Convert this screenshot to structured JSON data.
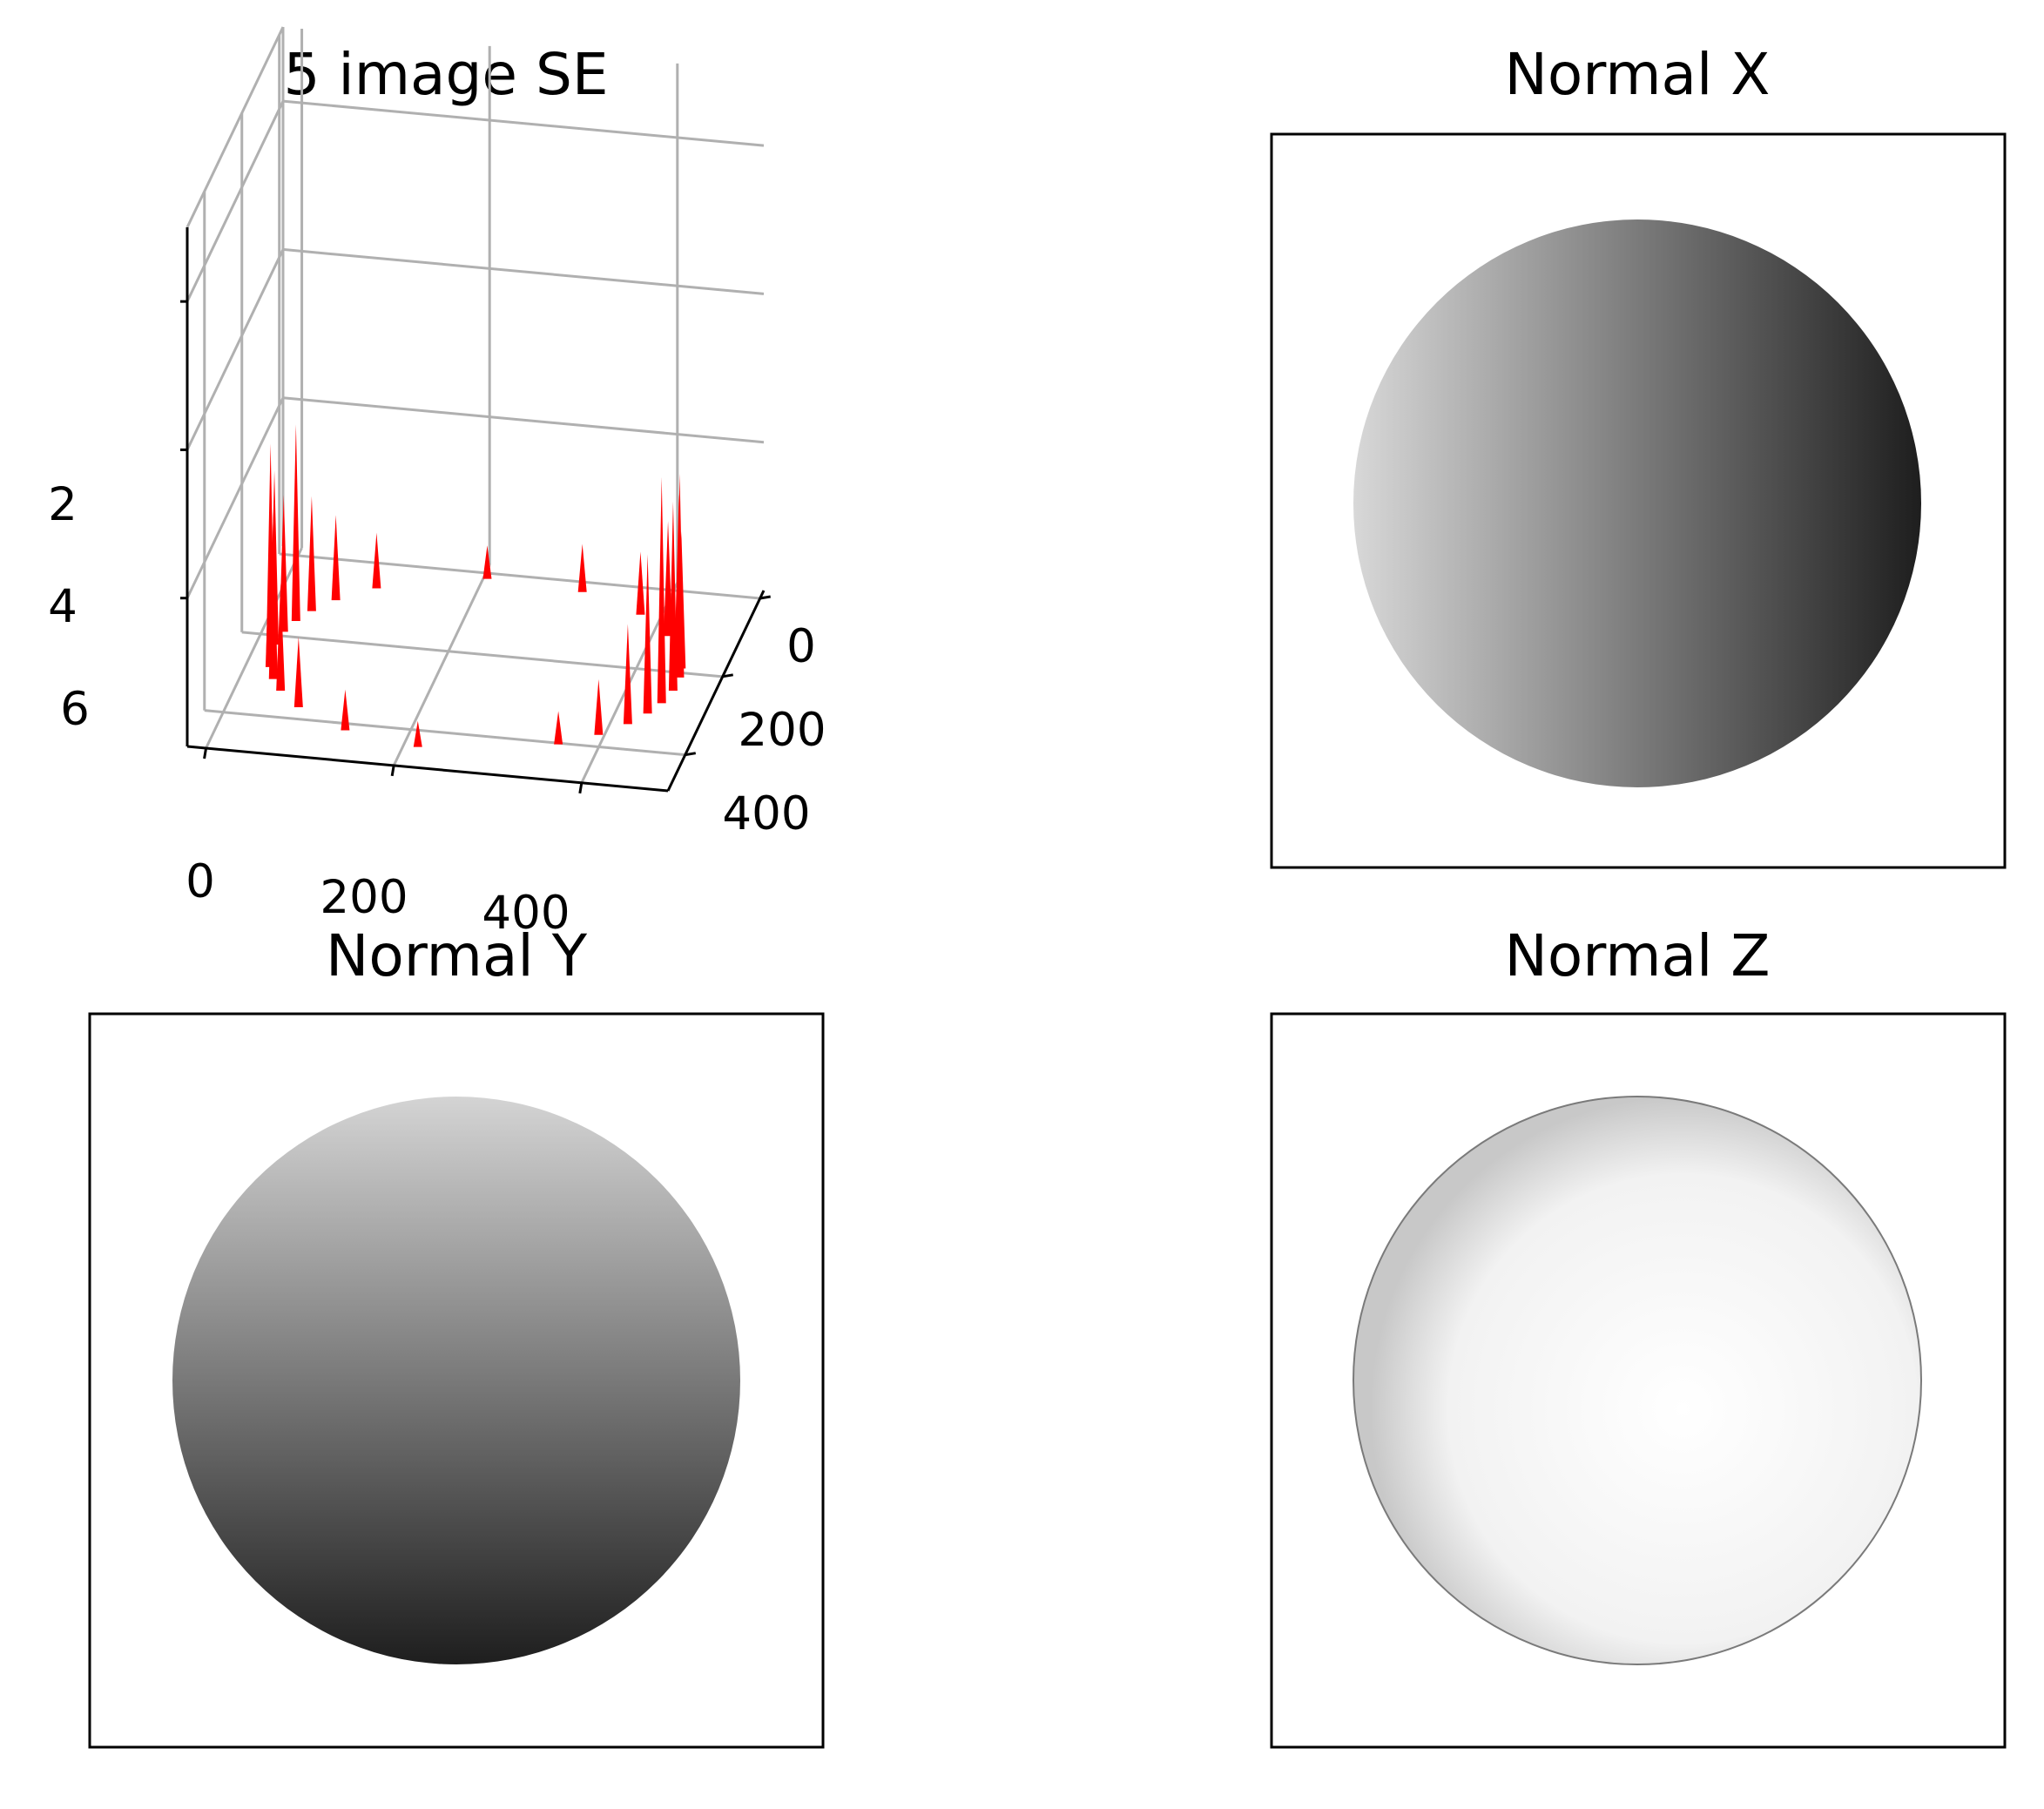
{
  "chart_data": [
    {
      "type": "surface3d",
      "title": "5 image SE",
      "x_ticks": [
        "0",
        "200",
        "400"
      ],
      "y_ticks": [
        "0",
        "200",
        "400"
      ],
      "z_ticks": [
        "2",
        "4",
        "6"
      ],
      "xlim": [
        0,
        512
      ],
      "ylim": [
        0,
        512
      ],
      "zlim": [
        0,
        7
      ],
      "grid": true,
      "surface_color": "#ff0000",
      "spikes": [
        {
          "angle": 5,
          "z": 2.6
        },
        {
          "angle": 14,
          "z": 3.1
        },
        {
          "angle": 22,
          "z": 2.2
        },
        {
          "angle": 31,
          "z": 1.4
        },
        {
          "angle": 42,
          "z": 0.8
        },
        {
          "angle": 55,
          "z": 0.5
        },
        {
          "angle": 95,
          "z": 0.4
        },
        {
          "angle": 118,
          "z": 0.6
        },
        {
          "angle": 138,
          "z": 1.0
        },
        {
          "angle": 150,
          "z": 1.5
        },
        {
          "angle": 158,
          "z": 2.3
        },
        {
          "angle": 166,
          "z": 1.8
        },
        {
          "angle": 174,
          "z": 2.9
        },
        {
          "angle": 181,
          "z": 2.4
        },
        {
          "angle": 190,
          "z": 1.9
        },
        {
          "angle": 198,
          "z": 2.7
        },
        {
          "angle": 206,
          "z": 1.6
        },
        {
          "angle": 216,
          "z": 1.2
        },
        {
          "angle": 230,
          "z": 0.8
        },
        {
          "angle": 262,
          "z": 0.5
        },
        {
          "angle": 290,
          "z": 0.7
        },
        {
          "angle": 312,
          "z": 0.9
        },
        {
          "angle": 328,
          "z": 1.6
        },
        {
          "angle": 340,
          "z": 2.2
        },
        {
          "angle": 350,
          "z": 1.9
        },
        {
          "angle": 356,
          "z": 2.8
        }
      ]
    },
    {
      "type": "image",
      "title": "Normal X",
      "colormap": "gray",
      "gradient": "horizontal",
      "from": "#d8d8d8",
      "to": "#1e1e1e"
    },
    {
      "type": "image",
      "title": "Normal Y",
      "colormap": "gray",
      "gradient": "vertical",
      "from": "#d4d4d4",
      "to": "#1e1e1e"
    },
    {
      "type": "image",
      "title": "Normal Z",
      "colormap": "gray",
      "gradient": "radial",
      "from": "#ffffff",
      "to": "#c8c8c8"
    }
  ]
}
